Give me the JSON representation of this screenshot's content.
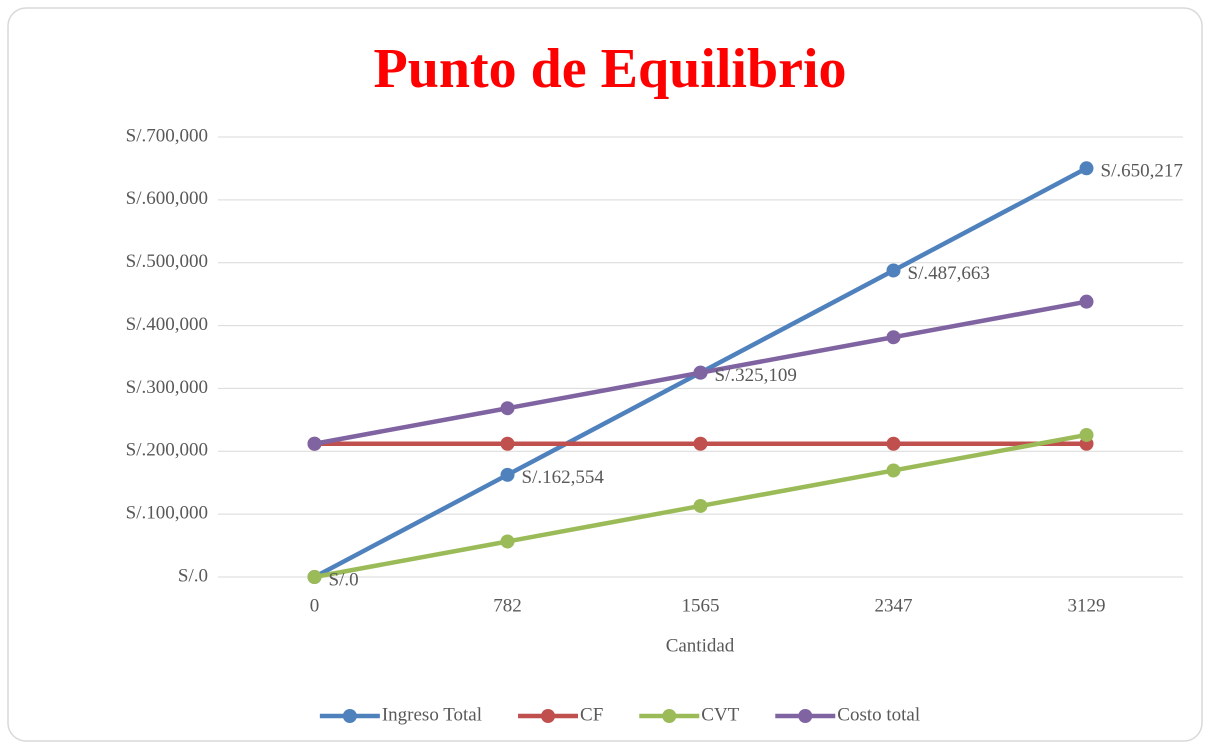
{
  "chart_data": {
    "type": "line",
    "title": "Punto de Equilibrio",
    "x_label": "Cantidad",
    "categories": [
      "0",
      "782",
      "1565",
      "2347",
      "3129"
    ],
    "series": [
      {
        "name": "Ingreso Total",
        "color": "#4f81bd",
        "values": [
          0,
          162554,
          325109,
          487663,
          650217
        ],
        "value_labels": [
          "S/.0",
          "S/.162,554",
          "S/.325,109",
          "S/.487,663",
          "S/.650,217"
        ]
      },
      {
        "name": "CF",
        "color": "#c0504d",
        "values": [
          212000,
          212000,
          212000,
          212000,
          212000
        ]
      },
      {
        "name": "CVT",
        "color": "#9bbb59",
        "values": [
          0,
          56500,
          113000,
          169500,
          226000
        ]
      },
      {
        "name": "Costo total",
        "color": "#8064a2",
        "values": [
          212000,
          268500,
          325000,
          381500,
          438000
        ]
      }
    ],
    "ylim": [
      0,
      700000
    ],
    "yticks": [
      {
        "value": 0,
        "label": "S/.0"
      },
      {
        "value": 100000,
        "label": "S/.100,000"
      },
      {
        "value": 200000,
        "label": "S/.200,000"
      },
      {
        "value": 300000,
        "label": "S/.300,000"
      },
      {
        "value": 400000,
        "label": "S/.400,000"
      },
      {
        "value": 500000,
        "label": "S/.500,000"
      },
      {
        "value": 600000,
        "label": "S/.600,000"
      },
      {
        "value": 700000,
        "label": "S/.700,000"
      }
    ],
    "grid": true,
    "legend": "bottom"
  }
}
